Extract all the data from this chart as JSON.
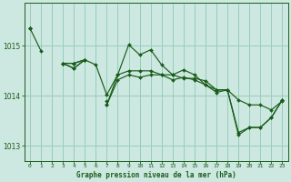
{
  "title": "Graphe pression niveau de la mer (hPa)",
  "bg_color": "#cce8e0",
  "grid_color": "#99ccbb",
  "line_color": "#1a5c1a",
  "xlim": [
    -0.5,
    23.5
  ],
  "ylim": [
    1012.7,
    1015.85
  ],
  "yticks": [
    1013,
    1014,
    1015
  ],
  "xticks": [
    0,
    1,
    2,
    3,
    4,
    5,
    6,
    7,
    8,
    9,
    10,
    11,
    12,
    13,
    14,
    15,
    16,
    17,
    18,
    19,
    20,
    21,
    22,
    23
  ],
  "lines": [
    [
      1015.35,
      1014.9,
      null,
      1014.65,
      1014.65,
      1014.72,
      1014.62,
      1014.02,
      1014.42,
      1014.5,
      1014.5,
      1014.5,
      1014.42,
      1014.42,
      1014.35,
      1014.35,
      1014.3,
      1014.12,
      1014.12,
      1013.92,
      1013.82,
      1013.82,
      1013.72,
      1013.9
    ],
    [
      1015.35,
      null,
      null,
      1014.65,
      1014.55,
      1014.72,
      null,
      1013.9,
      null,
      null,
      null,
      null,
      null,
      null,
      null,
      null,
      null,
      null,
      null,
      null,
      null,
      null,
      null,
      null
    ],
    [
      1015.35,
      null,
      null,
      1014.65,
      1014.55,
      1014.72,
      null,
      1013.82,
      1014.42,
      1015.02,
      1014.82,
      1014.92,
      1014.62,
      1014.42,
      1014.52,
      1014.42,
      1014.22,
      1014.12,
      1014.12,
      1013.22,
      1013.37,
      1013.37,
      1013.57,
      1013.92
    ],
    [
      1015.35,
      null,
      null,
      1014.65,
      1014.65,
      1014.72,
      null,
      1013.82,
      1014.32,
      1014.42,
      1014.37,
      1014.42,
      1014.42,
      1014.32,
      1014.37,
      1014.32,
      1014.22,
      1014.07,
      1014.12,
      1013.27,
      1013.37,
      1013.37,
      1013.57,
      1013.92
    ]
  ]
}
